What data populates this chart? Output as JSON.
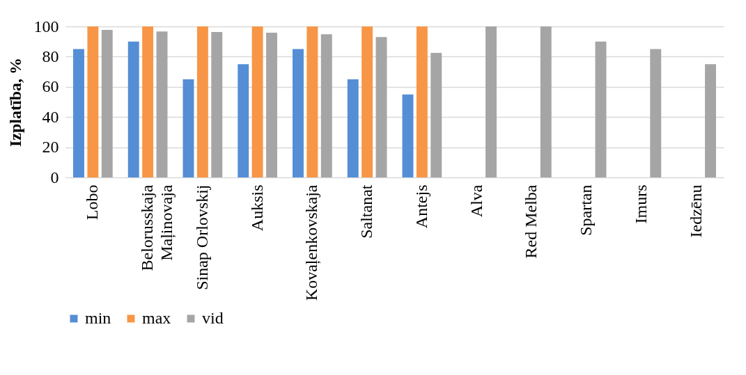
{
  "chart_data": {
    "type": "bar",
    "ylabel": "Izplatība, %",
    "categories": [
      "Lobo",
      "Belorusskaja Maļinovaja",
      "Sinap Orlovskij",
      "Auksis",
      "Kovaļenkovskaja",
      "Saltanat",
      "Antejs",
      "Alva",
      "Red Melba",
      "Spartan",
      "Imurs",
      "Iedzēnu"
    ],
    "series": [
      {
        "name": "min",
        "color": "#558ed5",
        "values": [
          85,
          90,
          65,
          75,
          85,
          65,
          55,
          null,
          null,
          null,
          null,
          null
        ]
      },
      {
        "name": "max",
        "color": "#f79646",
        "values": [
          100,
          100,
          100,
          100,
          100,
          100,
          100,
          null,
          null,
          null,
          null,
          null
        ]
      },
      {
        "name": "vid",
        "color": "#a5a5a5",
        "values": [
          97.7,
          96.7,
          96.3,
          95.8,
          94.8,
          93,
          82.5,
          100,
          100,
          90,
          85,
          75
        ]
      }
    ],
    "ylim": [
      0,
      100
    ],
    "yticks": [
      0,
      20,
      40,
      60,
      80,
      100
    ],
    "grid": "y",
    "legend": "bottom"
  }
}
